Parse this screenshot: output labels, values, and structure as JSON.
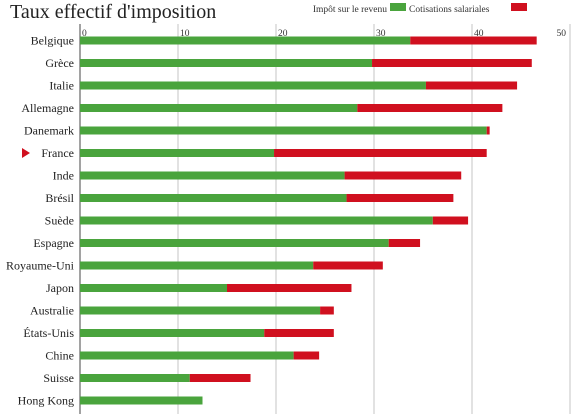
{
  "chart_data": {
    "type": "bar",
    "orientation": "horizontal",
    "stacked": true,
    "title": "Taux effectif d'imposition",
    "xlim": [
      0,
      50
    ],
    "x_ticks": [
      "0",
      "10",
      "20",
      "30",
      "40",
      "50"
    ],
    "grid": true,
    "legend_position": "top-right",
    "categories": [
      "Belgique",
      "Grèce",
      "Italie",
      "Allemagne",
      "Danemark",
      "France",
      "Inde",
      "Brésil",
      "Suède",
      "Espagne",
      "Royaume-Uni",
      "Japon",
      "Australie",
      "États-Unis",
      "Chine",
      "Suisse",
      "Hong Kong"
    ],
    "highlight_category": "France",
    "series": [
      {
        "name": "Impôt sur le revenu",
        "color": "#4aa43d",
        "values": [
          33.7,
          29.8,
          35.3,
          28.3,
          41.5,
          19.8,
          27.0,
          27.2,
          36.0,
          31.5,
          23.8,
          15.0,
          24.5,
          18.8,
          21.8,
          11.2,
          12.5
        ]
      },
      {
        "name": "Cotisations salariales",
        "color": "#d0101f",
        "values": [
          12.9,
          16.3,
          9.3,
          14.8,
          0.3,
          21.7,
          11.9,
          10.9,
          3.6,
          3.2,
          7.1,
          12.7,
          1.4,
          7.1,
          2.6,
          6.2,
          0
        ]
      }
    ]
  }
}
